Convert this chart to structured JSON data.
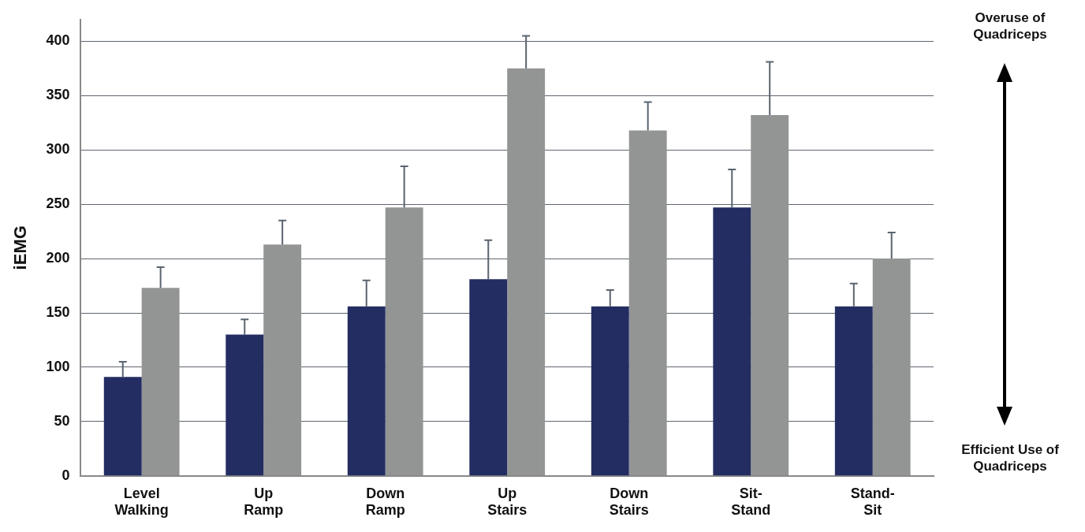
{
  "chart_data": {
    "type": "bar",
    "ylabel": "iEMG",
    "categories": [
      "Level Walking",
      "Up Ramp",
      "Down Ramp",
      "Up Stairs",
      "Down Stairs",
      "Sit-Stand",
      "Stand-Sit"
    ],
    "series": [
      {
        "color": "#232d62",
        "values": [
          91,
          130,
          156,
          181,
          156,
          247,
          156
        ],
        "errors": [
          [
            91,
            105
          ],
          [
            130,
            144
          ],
          [
            156,
            180
          ],
          [
            181,
            217
          ],
          [
            156,
            171
          ],
          [
            247,
            282
          ],
          [
            156,
            177
          ]
        ]
      },
      {
        "color": "#939595",
        "values": [
          173,
          213,
          247,
          375,
          318,
          332,
          200
        ],
        "errors": [
          [
            173,
            192
          ],
          [
            213,
            235
          ],
          [
            247,
            285
          ],
          [
            375,
            405
          ],
          [
            318,
            344
          ],
          [
            332,
            381
          ],
          [
            200,
            224
          ]
        ]
      }
    ],
    "ylim": [
      0,
      420
    ],
    "yticks": [
      0,
      50,
      100,
      150,
      200,
      250,
      300,
      350,
      400
    ],
    "grid": "y",
    "legend": false,
    "annotations": [
      "Overuse of Quadriceps",
      "Efficient Use of Quadriceps"
    ]
  }
}
